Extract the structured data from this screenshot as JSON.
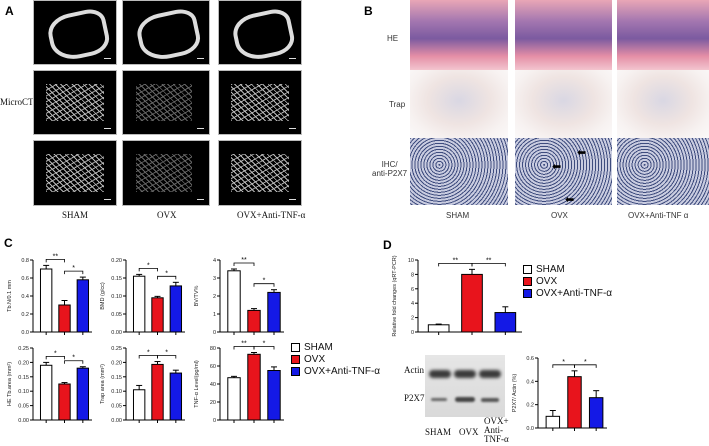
{
  "panels": {
    "a": "A",
    "b": "B",
    "c": "C",
    "d": "D"
  },
  "groups": [
    "SHAM",
    "OVX",
    "OVX+Anti-TNF-α"
  ],
  "colors": {
    "SHAM": "#ffffff",
    "OVX": "#e8141c",
    "OVX+Anti-TNF-α": "#1419e6"
  },
  "panel_a": {
    "row_label": "MicroCT",
    "col_labels": [
      "SHAM",
      "OVX",
      "OVX+Anti-TNF-α"
    ]
  },
  "panel_b": {
    "row_labels": [
      "HE",
      "Trap",
      "IHC/\nanti-P2X7"
    ],
    "col_labels": [
      "SHAM",
      "OVX",
      "OVX+Anti-TNF α"
    ]
  },
  "panel_c": {
    "legend": [
      "SHAM",
      "OVX",
      "OVX+Anti-TNF-α"
    ]
  },
  "panel_d": {
    "legend": [
      "SHAM",
      "OVX",
      "OVX+Anti-TNF-α"
    ],
    "blot_rows": [
      "Actin",
      "P2X7"
    ],
    "blot_cols": [
      "SHAM",
      "OVX",
      "OVX+\nAnti-\nTNF-α"
    ]
  },
  "chart_data": [
    {
      "type": "bar",
      "ylabel": "Tb.N/0.1 mm",
      "ylim": [
        0,
        0.8
      ],
      "ticks": [
        "0.0",
        "0.2",
        "0.4",
        "0.6",
        "0.8"
      ],
      "categories": [
        "SHAM",
        "OVX",
        "OVX+Anti-TNF-α"
      ],
      "values": [
        0.7,
        0.3,
        0.58
      ],
      "errors": [
        0.04,
        0.05,
        0.03
      ],
      "sig": [
        "**",
        "*"
      ]
    },
    {
      "type": "bar",
      "ylabel": "BMD (g/cc)",
      "ylim": [
        0,
        0.2
      ],
      "ticks": [
        "0.00",
        "0.05",
        "0.10",
        "0.15",
        "0.20"
      ],
      "categories": [
        "SHAM",
        "OVX",
        "OVX+Anti-TNF-α"
      ],
      "values": [
        0.155,
        0.095,
        0.128
      ],
      "errors": [
        0.005,
        0.004,
        0.01
      ],
      "sig": [
        "*",
        "*"
      ]
    },
    {
      "type": "bar",
      "ylabel": "BV/TV%",
      "ylim": [
        0,
        4
      ],
      "ticks": [
        "0",
        "1",
        "2",
        "3",
        "4"
      ],
      "categories": [
        "SHAM",
        "OVX",
        "OVX+Anti-TNF-α"
      ],
      "values": [
        3.4,
        1.2,
        2.2
      ],
      "errors": [
        0.1,
        0.1,
        0.15
      ],
      "sig": [
        "**",
        "*"
      ]
    },
    {
      "type": "bar",
      "ylabel": "HE Tb.area (mm²)",
      "ylim": [
        0,
        0.25
      ],
      "ticks": [
        "0.00",
        "0.05",
        "0.10",
        "0.15",
        "0.20",
        "0.25"
      ],
      "categories": [
        "SHAM",
        "OVX",
        "OVX+Anti-TNF-α"
      ],
      "values": [
        0.19,
        0.125,
        0.18
      ],
      "errors": [
        0.01,
        0.005,
        0.005
      ],
      "sig": [
        "*",
        "*"
      ]
    },
    {
      "type": "bar",
      "ylabel": "Trap area (mm²)",
      "ylim": [
        0,
        0.25
      ],
      "ticks": [
        "0.00",
        "0.05",
        "0.10",
        "0.15",
        "0.20",
        "0.25"
      ],
      "categories": [
        "SHAM",
        "OVX",
        "OVX+Anti-TNF-α"
      ],
      "values": [
        0.105,
        0.193,
        0.163
      ],
      "errors": [
        0.015,
        0.01,
        0.01
      ],
      "sig": [
        "*",
        "*"
      ]
    },
    {
      "type": "bar",
      "ylabel": "TNF-α Level(pg/ml)",
      "ylim": [
        0,
        80
      ],
      "ticks": [
        "0",
        "20",
        "40",
        "60",
        "80"
      ],
      "categories": [
        "SHAM",
        "OVX",
        "OVX+Anti-TNF-α"
      ],
      "values": [
        47,
        73,
        55
      ],
      "errors": [
        1.5,
        2,
        4
      ],
      "sig": [
        "**",
        "*"
      ]
    },
    {
      "type": "bar",
      "ylabel": "Relative fold changes (qRT-PCR)",
      "ylim": [
        0,
        10
      ],
      "ticks": [
        "0",
        "2",
        "4",
        "6",
        "8",
        "10"
      ],
      "categories": [
        "SHAM",
        "OVX",
        "OVX+Anti-TNF-α"
      ],
      "values": [
        1.0,
        8.0,
        2.7
      ],
      "errors": [
        0.1,
        0.7,
        0.8
      ],
      "sig": [
        "**",
        "**"
      ]
    },
    {
      "type": "bar",
      "ylabel": "P2X7/ Actin (%)",
      "ylim": [
        0,
        0.6
      ],
      "ticks": [
        "0.0",
        "0.2",
        "0.4",
        "0.6"
      ],
      "categories": [
        "SHAM",
        "OVX",
        "OVX+Anti-TNF-α"
      ],
      "values": [
        0.1,
        0.44,
        0.26
      ],
      "errors": [
        0.05,
        0.05,
        0.06
      ],
      "sig": [
        "*",
        "*"
      ]
    }
  ]
}
